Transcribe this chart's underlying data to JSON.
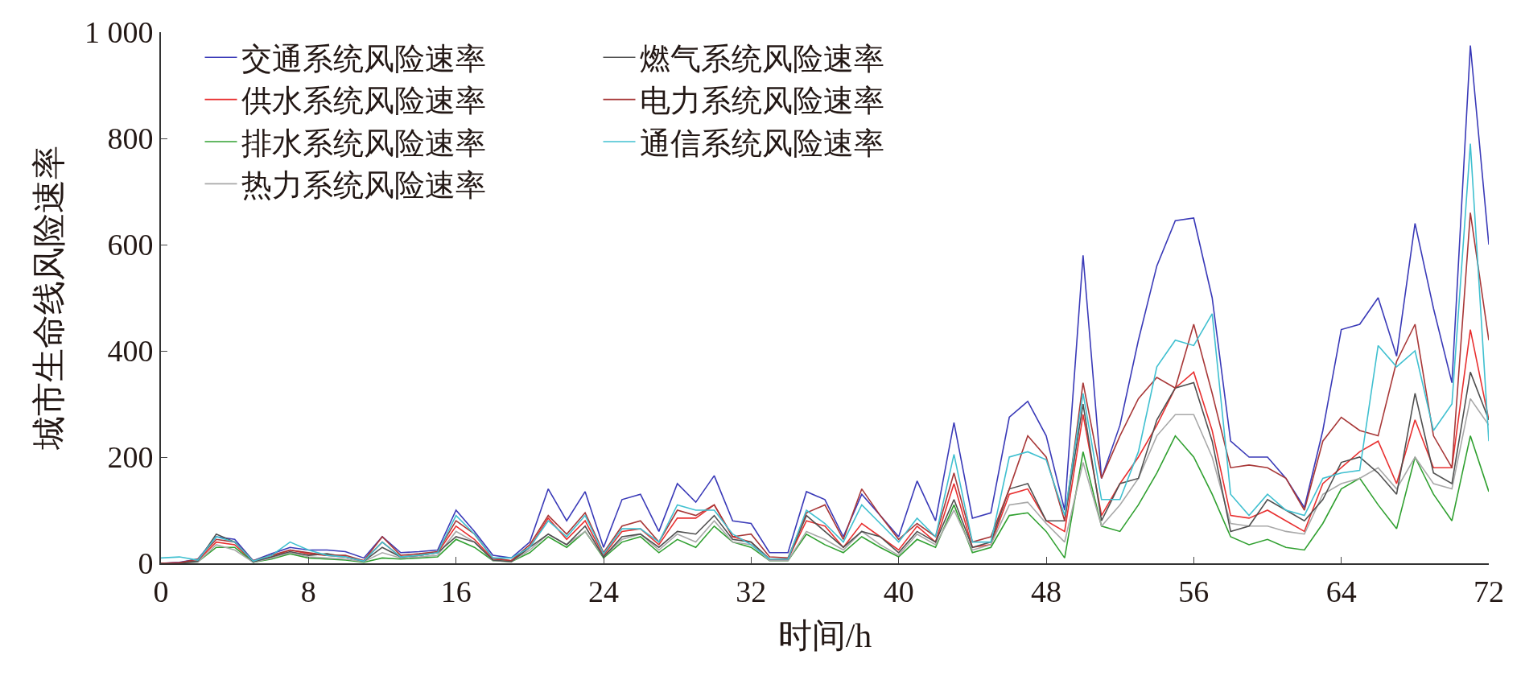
{
  "chart_data": {
    "type": "line",
    "xlabel": "时间/h",
    "ylabel": "城市生命线风险速率",
    "x": [
      0,
      1,
      2,
      3,
      4,
      5,
      6,
      7,
      8,
      9,
      10,
      11,
      12,
      13,
      14,
      15,
      16,
      17,
      18,
      19,
      20,
      21,
      22,
      23,
      24,
      25,
      26,
      27,
      28,
      29,
      30,
      31,
      32,
      33,
      34,
      35,
      36,
      37,
      38,
      39,
      40,
      41,
      42,
      43,
      44,
      45,
      46,
      47,
      48,
      49,
      50,
      51,
      52,
      53,
      54,
      55,
      56,
      57,
      58,
      59,
      60,
      61,
      62,
      63,
      64,
      65,
      66,
      67,
      68,
      69,
      70,
      71,
      72
    ],
    "xlim": [
      0,
      72
    ],
    "xticks": [
      0,
      8,
      16,
      24,
      32,
      40,
      48,
      56,
      64,
      72
    ],
    "ylim": [
      0,
      1000
    ],
    "yticks": [
      0,
      200,
      400,
      600,
      800,
      {
        "value": 1000,
        "label": "1 000"
      }
    ],
    "grid": false,
    "legend": "top left",
    "line_style": "solid",
    "series": [
      {
        "name": "交通系统风险速率",
        "color": "#3a3ab8",
        "values": [
          0,
          2,
          8,
          50,
          45,
          5,
          18,
          30,
          25,
          25,
          22,
          10,
          50,
          20,
          22,
          25,
          100,
          60,
          15,
          10,
          40,
          140,
          80,
          135,
          30,
          120,
          130,
          60,
          150,
          115,
          165,
          80,
          75,
          20,
          20,
          135,
          120,
          50,
          130,
          90,
          50,
          155,
          80,
          265,
          85,
          95,
          275,
          305,
          240,
          100,
          580,
          160,
          260,
          420,
          560,
          645,
          650,
          500,
          230,
          200,
          200,
          160,
          105,
          250,
          440,
          450,
          500,
          390,
          640,
          480,
          340,
          975,
          600
        ]
      },
      {
        "name": "供水系统风险速率",
        "color": "#e83030",
        "values": [
          0,
          1,
          5,
          40,
          35,
          3,
          12,
          25,
          18,
          15,
          12,
          5,
          40,
          12,
          15,
          20,
          70,
          45,
          8,
          5,
          30,
          85,
          45,
          80,
          15,
          60,
          65,
          35,
          85,
          85,
          110,
          50,
          40,
          8,
          8,
          80,
          70,
          30,
          75,
          50,
          25,
          70,
          40,
          150,
          30,
          35,
          130,
          140,
          80,
          60,
          280,
          90,
          150,
          200,
          260,
          330,
          360,
          250,
          90,
          85,
          100,
          80,
          60,
          150,
          180,
          210,
          230,
          150,
          270,
          180,
          180,
          440,
          270
        ]
      },
      {
        "name": "排水系统风险速率",
        "color": "#30a030",
        "values": [
          0,
          0,
          3,
          30,
          30,
          2,
          8,
          18,
          10,
          8,
          6,
          2,
          10,
          8,
          10,
          12,
          45,
          30,
          5,
          3,
          20,
          50,
          30,
          60,
          10,
          40,
          50,
          20,
          45,
          30,
          70,
          40,
          30,
          5,
          5,
          55,
          35,
          20,
          50,
          30,
          12,
          45,
          30,
          110,
          20,
          30,
          90,
          95,
          60,
          10,
          210,
          70,
          60,
          110,
          170,
          240,
          200,
          130,
          50,
          35,
          45,
          30,
          25,
          75,
          140,
          160,
          110,
          65,
          200,
          130,
          80,
          240,
          135
        ]
      },
      {
        "name": "热力系统风险速率",
        "color": "#a8a8a8",
        "values": [
          0,
          0,
          2,
          35,
          25,
          2,
          10,
          20,
          12,
          10,
          8,
          3,
          20,
          10,
          12,
          15,
          60,
          40,
          5,
          3,
          25,
          55,
          35,
          60,
          12,
          45,
          55,
          25,
          55,
          40,
          80,
          40,
          35,
          5,
          5,
          60,
          45,
          25,
          60,
          35,
          15,
          55,
          35,
          100,
          25,
          35,
          110,
          115,
          75,
          40,
          190,
          70,
          110,
          160,
          240,
          280,
          280,
          200,
          75,
          70,
          70,
          60,
          55,
          130,
          150,
          160,
          180,
          140,
          200,
          150,
          140,
          310,
          260
        ]
      },
      {
        "name": "燃气系统风险速率",
        "color": "#505050",
        "values": [
          0,
          0,
          4,
          55,
          40,
          3,
          12,
          22,
          15,
          18,
          12,
          4,
          30,
          12,
          15,
          20,
          50,
          40,
          6,
          3,
          30,
          55,
          35,
          70,
          12,
          50,
          55,
          30,
          60,
          55,
          90,
          45,
          40,
          8,
          8,
          90,
          60,
          30,
          60,
          50,
          20,
          60,
          40,
          120,
          30,
          40,
          140,
          150,
          80,
          80,
          300,
          80,
          150,
          160,
          270,
          330,
          340,
          230,
          60,
          70,
          120,
          100,
          80,
          120,
          190,
          200,
          170,
          130,
          320,
          170,
          150,
          360,
          270
        ]
      },
      {
        "name": "电力系统风险速率",
        "color": "#a83838",
        "values": [
          0,
          1,
          8,
          45,
          40,
          5,
          15,
          25,
          20,
          15,
          15,
          5,
          50,
          15,
          18,
          22,
          80,
          55,
          10,
          5,
          35,
          90,
          55,
          95,
          20,
          70,
          80,
          40,
          100,
          90,
          110,
          50,
          55,
          12,
          10,
          95,
          110,
          45,
          140,
          90,
          45,
          75,
          50,
          170,
          40,
          50,
          140,
          240,
          200,
          80,
          340,
          160,
          240,
          310,
          350,
          330,
          450,
          320,
          180,
          185,
          180,
          160,
          100,
          230,
          275,
          250,
          240,
          380,
          450,
          240,
          180,
          660,
          420
        ]
      },
      {
        "name": "通信系统风险速率",
        "color": "#40c0d0",
        "values": [
          10,
          12,
          6,
          50,
          40,
          4,
          15,
          40,
          25,
          15,
          12,
          4,
          40,
          12,
          15,
          20,
          90,
          55,
          10,
          10,
          30,
          80,
          50,
          90,
          18,
          65,
          65,
          40,
          110,
          100,
          100,
          55,
          35,
          8,
          8,
          100,
          75,
          40,
          110,
          75,
          40,
          85,
          50,
          205,
          40,
          40,
          200,
          210,
          195,
          90,
          320,
          120,
          120,
          210,
          370,
          420,
          410,
          470,
          130,
          90,
          130,
          100,
          90,
          160,
          170,
          175,
          410,
          370,
          400,
          250,
          300,
          790,
          230
        ]
      }
    ]
  }
}
